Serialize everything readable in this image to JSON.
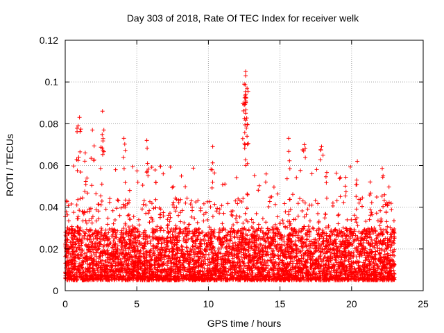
{
  "chart_data": {
    "type": "scatter",
    "title": "Day 303 of 2018, Rate Of TEC Index for receiver welk",
    "xlabel": "GPS time / hours",
    "ylabel": "ROTI / TECUs",
    "xlim": [
      0,
      25
    ],
    "ylim": [
      0,
      0.12
    ],
    "xticks": [
      "0",
      "5",
      "10",
      "15",
      "20",
      "25"
    ],
    "yticks": [
      "0",
      "0.02",
      "0.04",
      "0.06",
      "0.08",
      "0.1",
      "0.12"
    ],
    "grid": true,
    "marker": "+",
    "series_color": "#ff0000",
    "time_range_hours": [
      0,
      23
    ],
    "typical_range": [
      0.005,
      0.03
    ],
    "notable_points": [
      {
        "x": 1.0,
        "y": 0.083
      },
      {
        "x": 0.9,
        "y": 0.079
      },
      {
        "x": 2.6,
        "y": 0.086
      },
      {
        "x": 12.6,
        "y": 0.105
      },
      {
        "x": 12.6,
        "y": 0.103
      },
      {
        "x": 12.5,
        "y": 0.099
      },
      {
        "x": 12.7,
        "y": 0.097
      },
      {
        "x": 12.6,
        "y": 0.094
      },
      {
        "x": 12.5,
        "y": 0.089
      },
      {
        "x": 12.6,
        "y": 0.085
      },
      {
        "x": 12.7,
        "y": 0.074
      },
      {
        "x": 1.9,
        "y": 0.077
      },
      {
        "x": 2.7,
        "y": 0.077
      },
      {
        "x": 4.1,
        "y": 0.073
      },
      {
        "x": 5.7,
        "y": 0.072
      },
      {
        "x": 10.3,
        "y": 0.069
      },
      {
        "x": 16.7,
        "y": 0.07
      },
      {
        "x": 15.6,
        "y": 0.073
      },
      {
        "x": 17.9,
        "y": 0.069
      },
      {
        "x": 20.4,
        "y": 0.062
      },
      {
        "x": 1.4,
        "y": 0.066
      },
      {
        "x": 22.2,
        "y": 0.055
      },
      {
        "x": 4.5,
        "y": 0.048
      },
      {
        "x": 0.1,
        "y": 0.043
      }
    ]
  }
}
